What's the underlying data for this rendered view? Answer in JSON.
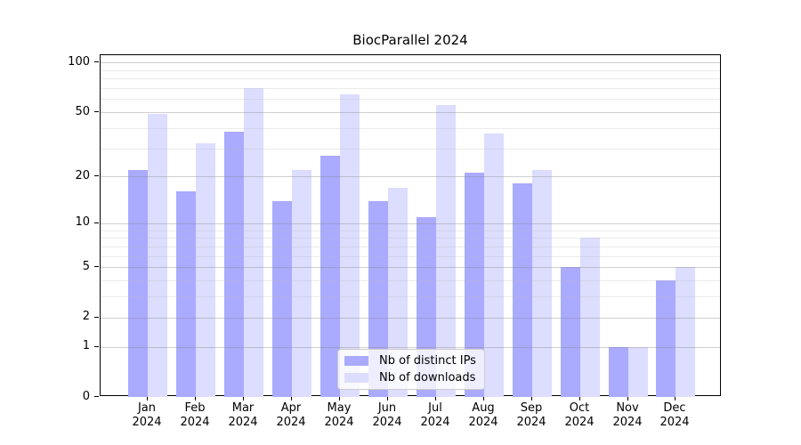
{
  "chart_data": {
    "type": "bar",
    "title": "BiocParallel 2024",
    "categories": [
      "Jan 2024",
      "Feb 2024",
      "Mar 2024",
      "Apr 2024",
      "May 2024",
      "Jun 2024",
      "Jul 2024",
      "Aug 2024",
      "Sep 2024",
      "Oct 2024",
      "Nov 2024",
      "Dec 2024"
    ],
    "series": [
      {
        "name": "Nb of distinct IPs",
        "color": "#aaaaff",
        "values": [
          22,
          16,
          38,
          14,
          27,
          14,
          11,
          21,
          18,
          5,
          1,
          4
        ]
      },
      {
        "name": "Nb of downloads",
        "color": "#ddddff",
        "values": [
          49,
          32,
          70,
          22,
          64,
          17,
          55,
          37,
          22,
          8,
          1,
          5
        ]
      }
    ],
    "xlabel": "",
    "ylabel": "",
    "y_scale": "log1p",
    "y_ticks": [
      0,
      1,
      2,
      5,
      10,
      20,
      50,
      100
    ],
    "y_minor_gridlines": [
      3,
      4,
      6,
      7,
      8,
      9,
      30,
      40,
      60,
      70,
      80,
      90
    ],
    "ylim": [
      0,
      111
    ],
    "grid": "both-horizontal",
    "legend_position": "inside-bottom-center",
    "colors": {
      "bar_distinct_ips": "#aaaaff",
      "bar_downloads": "#ddddff",
      "axis": "#000000",
      "grid_major": "#c8c8c8",
      "grid_minor": "#ebebeb",
      "legend_border": "#cccccc"
    }
  }
}
